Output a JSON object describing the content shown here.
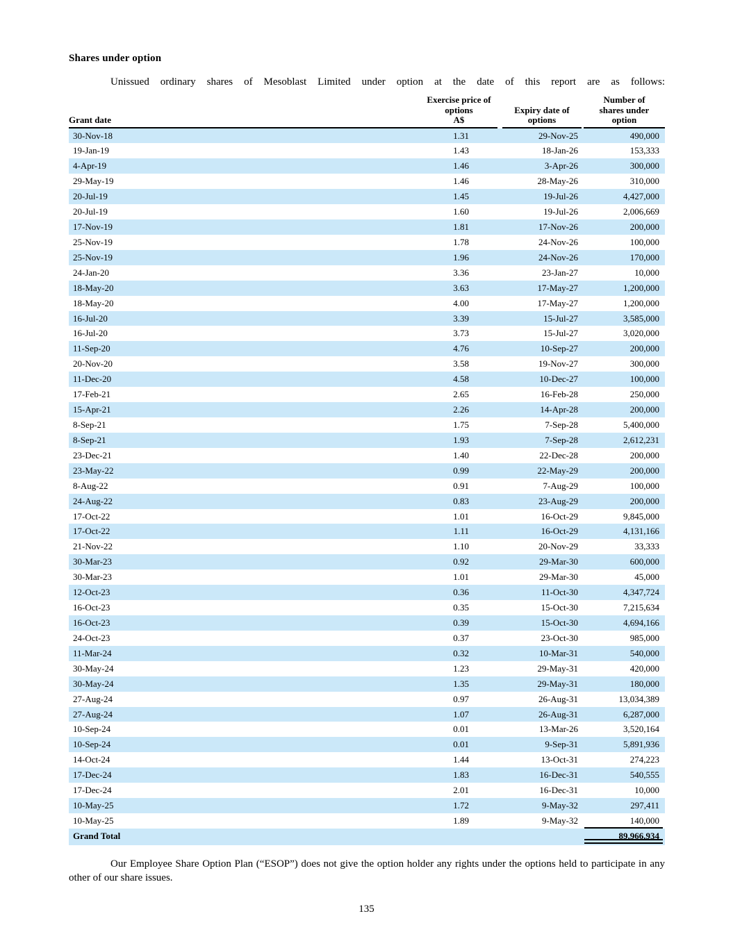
{
  "title": "Shares under option",
  "intro": "Unissued ordinary shares of Mesoblast Limited under option at the date of this report are as follows:",
  "table": {
    "headers": [
      "Grant date",
      "Exercise price of\noptions\nA$",
      "Expiry date of\noptions",
      "Number of\nshares under\noption"
    ],
    "rows": [
      [
        "30-Nov-18",
        "1.31",
        "29-Nov-25",
        "490,000"
      ],
      [
        "19-Jan-19",
        "1.43",
        "18-Jan-26",
        "153,333"
      ],
      [
        "4-Apr-19",
        "1.46",
        "3-Apr-26",
        "300,000"
      ],
      [
        "29-May-19",
        "1.46",
        "28-May-26",
        "310,000"
      ],
      [
        "20-Jul-19",
        "1.45",
        "19-Jul-26",
        "4,427,000"
      ],
      [
        "20-Jul-19",
        "1.60",
        "19-Jul-26",
        "2,006,669"
      ],
      [
        "17-Nov-19",
        "1.81",
        "17-Nov-26",
        "200,000"
      ],
      [
        "25-Nov-19",
        "1.78",
        "24-Nov-26",
        "100,000"
      ],
      [
        "25-Nov-19",
        "1.96",
        "24-Nov-26",
        "170,000"
      ],
      [
        "24-Jan-20",
        "3.36",
        "23-Jan-27",
        "10,000"
      ],
      [
        "18-May-20",
        "3.63",
        "17-May-27",
        "1,200,000"
      ],
      [
        "18-May-20",
        "4.00",
        "17-May-27",
        "1,200,000"
      ],
      [
        "16-Jul-20",
        "3.39",
        "15-Jul-27",
        "3,585,000"
      ],
      [
        "16-Jul-20",
        "3.73",
        "15-Jul-27",
        "3,020,000"
      ],
      [
        "11-Sep-20",
        "4.76",
        "10-Sep-27",
        "200,000"
      ],
      [
        "20-Nov-20",
        "3.58",
        "19-Nov-27",
        "300,000"
      ],
      [
        "11-Dec-20",
        "4.58",
        "10-Dec-27",
        "100,000"
      ],
      [
        "17-Feb-21",
        "2.65",
        "16-Feb-28",
        "250,000"
      ],
      [
        "15-Apr-21",
        "2.26",
        "14-Apr-28",
        "200,000"
      ],
      [
        "8-Sep-21",
        "1.75",
        "7-Sep-28",
        "5,400,000"
      ],
      [
        "8-Sep-21",
        "1.93",
        "7-Sep-28",
        "2,612,231"
      ],
      [
        "23-Dec-21",
        "1.40",
        "22-Dec-28",
        "200,000"
      ],
      [
        "23-May-22",
        "0.99",
        "22-May-29",
        "200,000"
      ],
      [
        "8-Aug-22",
        "0.91",
        "7-Aug-29",
        "100,000"
      ],
      [
        "24-Aug-22",
        "0.83",
        "23-Aug-29",
        "200,000"
      ],
      [
        "17-Oct-22",
        "1.01",
        "16-Oct-29",
        "9,845,000"
      ],
      [
        "17-Oct-22",
        "1.11",
        "16-Oct-29",
        "4,131,166"
      ],
      [
        "21-Nov-22",
        "1.10",
        "20-Nov-29",
        "33,333"
      ],
      [
        "30-Mar-23",
        "0.92",
        "29-Mar-30",
        "600,000"
      ],
      [
        "30-Mar-23",
        "1.01",
        "29-Mar-30",
        "45,000"
      ],
      [
        "12-Oct-23",
        "0.36",
        "11-Oct-30",
        "4,347,724"
      ],
      [
        "16-Oct-23",
        "0.35",
        "15-Oct-30",
        "7,215,634"
      ],
      [
        "16-Oct-23",
        "0.39",
        "15-Oct-30",
        "4,694,166"
      ],
      [
        "24-Oct-23",
        "0.37",
        "23-Oct-30",
        "985,000"
      ],
      [
        "11-Mar-24",
        "0.32",
        "10-Mar-31",
        "540,000"
      ],
      [
        "30-May-24",
        "1.23",
        "29-May-31",
        "420,000"
      ],
      [
        "30-May-24",
        "1.35",
        "29-May-31",
        "180,000"
      ],
      [
        "27-Aug-24",
        "0.97",
        "26-Aug-31",
        "13,034,389"
      ],
      [
        "27-Aug-24",
        "1.07",
        "26-Aug-31",
        "6,287,000"
      ],
      [
        "10-Sep-24",
        "0.01",
        "13-Mar-26",
        "3,520,164"
      ],
      [
        "10-Sep-24",
        "0.01",
        "9-Sep-31",
        "5,891,936"
      ],
      [
        "14-Oct-24",
        "1.44",
        "13-Oct-31",
        "274,223"
      ],
      [
        "17-Dec-24",
        "1.83",
        "16-Dec-31",
        "540,555"
      ],
      [
        "17-Dec-24",
        "2.01",
        "16-Dec-31",
        "10,000"
      ],
      [
        "10-May-25",
        "1.72",
        "9-May-32",
        "297,411"
      ],
      [
        "10-May-25",
        "1.89",
        "9-May-32",
        "140,000"
      ]
    ],
    "grand_total": {
      "label": "Grand Total",
      "value": "89,966,934"
    }
  },
  "footnote": "Our Employee Share Option Plan (“ESOP”) does not give the option holder any rights under the options held to participate in any other of our share issues.",
  "page_number": "135",
  "colors": {
    "row_highlight": "#cbe8f9",
    "text": "#000000",
    "rule": "#000000"
  }
}
